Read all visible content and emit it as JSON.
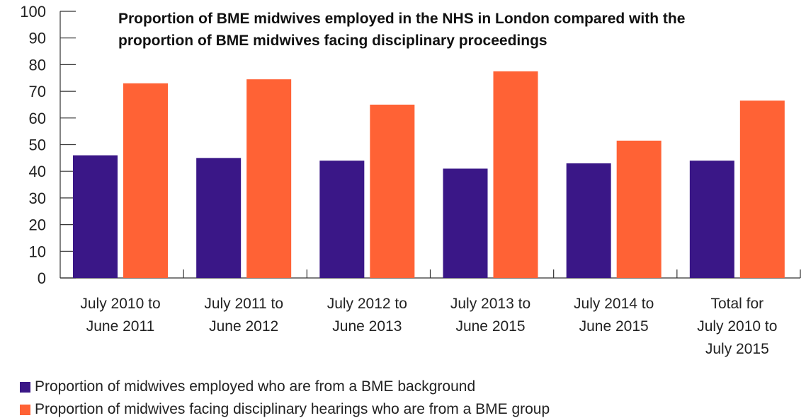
{
  "chart_data": {
    "type": "bar",
    "title_lines": [
      "Proportion of BME midwives employed in the NHS in London compared with the",
      "proportion of BME midwives facing disciplinary proceedings"
    ],
    "categories": [
      [
        "July 2010 to",
        "June 2011"
      ],
      [
        "July 2011 to",
        "June 2012"
      ],
      [
        "July 2012 to",
        "June 2013"
      ],
      [
        "July 2013 to",
        "June 2015"
      ],
      [
        "July 2014 to",
        "June 2015"
      ],
      [
        "Total for",
        "July 2010 to",
        "July 2015"
      ]
    ],
    "series": [
      {
        "name": "Proportion of midwives employed who are from a BME background",
        "color": "#3a1787",
        "values": [
          46,
          45,
          44,
          41,
          43,
          44
        ]
      },
      {
        "name": "Proportion of midwives facing disciplinary hearings who are from a BME group",
        "color": "#ff6235",
        "values": [
          73,
          74.5,
          65,
          77.5,
          51.5,
          66.5
        ]
      }
    ],
    "yticks": [
      "0",
      "10",
      "20",
      "30",
      "40",
      "50",
      "60",
      "70",
      "80",
      "90",
      "100"
    ],
    "ylim": [
      0,
      100
    ],
    "grid": false,
    "legend_position": "bottom-left"
  }
}
